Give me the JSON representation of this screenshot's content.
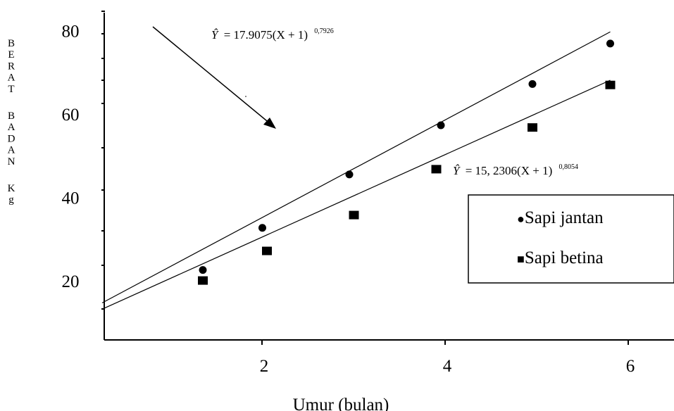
{
  "chart_data": {
    "type": "scatter",
    "xlabel": "Umur (bulan)",
    "ylabel": "BERAT  BADAN  Kg",
    "xlim": [
      0.2,
      6.8
    ],
    "ylim": [
      6,
      88
    ],
    "x_ticks": [
      2,
      4,
      6
    ],
    "y_ticks": [
      20,
      40,
      60,
      80
    ],
    "grid": false,
    "legend_position": "lower-right",
    "series": [
      {
        "name": "Sapi jantan",
        "marker": "circle",
        "x": [
          1.3,
          1.95,
          2.9,
          3.9,
          4.9,
          5.75
        ],
        "y": [
          22.6,
          32.7,
          45.5,
          57.3,
          67.2,
          76.9
        ],
        "fit_line": {
          "x0": 0.2,
          "y0": 14.7,
          "x1": 5.75,
          "y1": 79.7
        },
        "equation": {
          "lhs": "Ŷ",
          "rhs": "= 17.9075(X + 1)",
          "exponent": "0,7926"
        }
      },
      {
        "name": "Sapi betina",
        "marker": "square",
        "x": [
          1.3,
          2.0,
          2.95,
          3.85,
          4.9,
          5.75
        ],
        "y": [
          19.9,
          27.0,
          35.6,
          46.6,
          56.6,
          66.8
        ],
        "fit_line": {
          "x0": 0.2,
          "y0": 13.2,
          "x1": 5.75,
          "y1": 68.1
        },
        "equation": {
          "lhs": "Ŷ",
          "rhs": "= 15, 2306(X + 1)",
          "exponent": "0,8054"
        }
      }
    ]
  },
  "legend": {
    "items": [
      {
        "symbol": "●",
        "label": "Sapi jantan"
      },
      {
        "symbol": "■",
        "label": "Sapi betina"
      }
    ]
  }
}
